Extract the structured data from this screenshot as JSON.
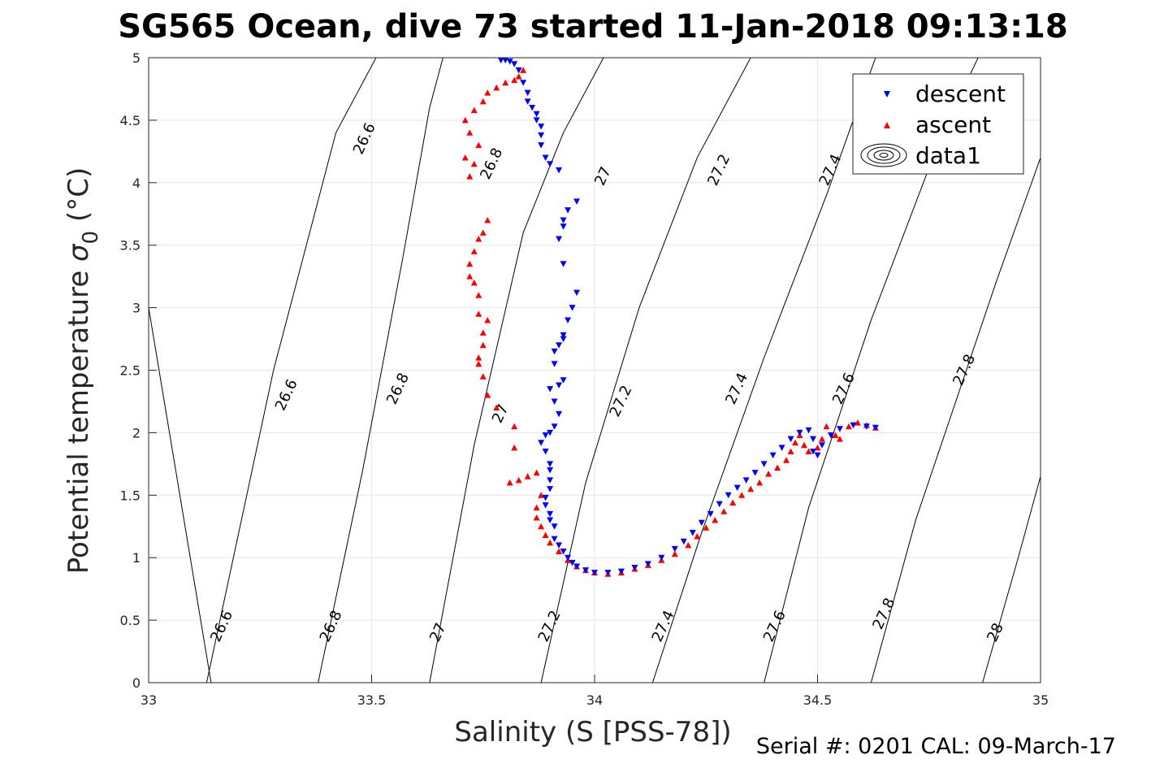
{
  "chart_data": {
    "type": "scatter",
    "title": "SG565 Ocean, dive 73 started 11-Jan-2018 09:13:18",
    "xlabel": "Salinity (S [PSS-78])",
    "ylabel_main": "Potential temperature ",
    "ylabel_symbol": "σ",
    "ylabel_subscript": "0",
    "ylabel_unit": " (°C)",
    "footer": "Serial #: 0201  CAL: 09-March-17",
    "xlim": [
      33,
      35
    ],
    "ylim": [
      0,
      5
    ],
    "xticks": [
      33,
      33.5,
      34,
      34.5,
      35
    ],
    "xtick_labels": [
      "33",
      "33.5",
      "34",
      "34.5",
      "35"
    ],
    "yticks": [
      0,
      0.5,
      1,
      1.5,
      2,
      2.5,
      3,
      3.5,
      4,
      4.5,
      5
    ],
    "ytick_labels": [
      "0",
      "0.5",
      "1",
      "1.5",
      "2",
      "2.5",
      "3",
      "3.5",
      "4",
      "4.5",
      "5"
    ],
    "grid": true,
    "legend_position": "top-right",
    "legend": [
      {
        "label": "descent",
        "marker": "down-triangle",
        "color": "#0000ff"
      },
      {
        "label": "ascent",
        "marker": "up-triangle",
        "color": "#ff0000"
      },
      {
        "label": "data1",
        "marker": "contour"
      }
    ],
    "contours": [
      {
        "points": [
          [
            33.0,
            3.0
          ],
          [
            33.14,
            0.0
          ]
        ],
        "labels": []
      },
      {
        "points": [
          [
            33.13,
            0.0
          ],
          [
            33.28,
            2.5
          ],
          [
            33.42,
            4.4
          ],
          [
            33.51,
            5.0
          ]
        ],
        "labels": [
          {
            "text": "26.6",
            "x": 33.165,
            "y": 0.45
          },
          {
            "text": "26.6",
            "x": 33.31,
            "y": 2.3
          },
          {
            "text": "26.6",
            "x": 33.485,
            "y": 4.35
          }
        ]
      },
      {
        "points": [
          [
            33.38,
            0.0
          ],
          [
            33.48,
            1.7
          ],
          [
            33.57,
            3.4
          ],
          [
            33.63,
            4.6
          ],
          [
            33.66,
            5.0
          ]
        ],
        "labels": [
          {
            "text": "26.8",
            "x": 33.41,
            "y": 0.45
          },
          {
            "text": "26.8",
            "x": 33.56,
            "y": 2.35
          },
          {
            "text": "26.8",
            "x": 33.77,
            "y": 4.15
          }
        ]
      },
      {
        "points": [
          [
            33.63,
            0.0
          ],
          [
            33.73,
            1.9
          ],
          [
            33.84,
            3.6
          ],
          [
            33.93,
            4.4
          ],
          [
            34.02,
            5.0
          ]
        ],
        "labels": [
          {
            "text": "27",
            "x": 33.65,
            "y": 0.4
          },
          {
            "text": "27",
            "x": 33.79,
            "y": 2.15
          },
          {
            "text": "27",
            "x": 34.02,
            "y": 4.05
          }
        ]
      },
      {
        "points": [
          [
            33.88,
            0.0
          ],
          [
            33.98,
            1.6
          ],
          [
            34.1,
            3.0
          ],
          [
            34.23,
            4.2
          ],
          [
            34.35,
            5.0
          ]
        ],
        "labels": [
          {
            "text": "27.2",
            "x": 33.9,
            "y": 0.45
          },
          {
            "text": "27.2",
            "x": 34.06,
            "y": 2.25
          },
          {
            "text": "27.2",
            "x": 34.28,
            "y": 4.1
          }
        ]
      },
      {
        "points": [
          [
            34.13,
            0.0
          ],
          [
            34.24,
            1.2
          ],
          [
            34.38,
            2.6
          ],
          [
            34.52,
            3.9
          ],
          [
            34.63,
            5.0
          ]
        ],
        "labels": [
          {
            "text": "27.4",
            "x": 34.155,
            "y": 0.45
          },
          {
            "text": "27.4",
            "x": 34.32,
            "y": 2.35
          },
          {
            "text": "27.4",
            "x": 34.53,
            "y": 4.1
          }
        ]
      },
      {
        "points": [
          [
            34.38,
            0.0
          ],
          [
            34.48,
            1.4
          ],
          [
            34.62,
            2.9
          ],
          [
            34.78,
            4.4
          ],
          [
            34.86,
            5.0
          ]
        ],
        "labels": [
          {
            "text": "27.6",
            "x": 34.405,
            "y": 0.45
          },
          {
            "text": "27.6",
            "x": 34.56,
            "y": 2.35
          }
        ]
      },
      {
        "points": [
          [
            34.62,
            0.0
          ],
          [
            34.72,
            1.3
          ],
          [
            34.9,
            3.2
          ],
          [
            35.0,
            4.2
          ]
        ],
        "labels": [
          {
            "text": "27.8",
            "x": 34.65,
            "y": 0.55
          },
          {
            "text": "27.8",
            "x": 34.83,
            "y": 2.5
          }
        ]
      },
      {
        "points": [
          [
            34.87,
            0.0
          ],
          [
            34.95,
            1.0
          ],
          [
            35.0,
            1.65
          ]
        ],
        "labels": [
          {
            "text": "28",
            "x": 34.9,
            "y": 0.4
          }
        ]
      }
    ],
    "series": [
      {
        "name": "descent",
        "marker": "down-triangle",
        "color": "#0000ff",
        "points": [
          [
            33.79,
            4.98
          ],
          [
            33.8,
            4.98
          ],
          [
            33.81,
            4.97
          ],
          [
            33.82,
            4.95
          ],
          [
            33.83,
            4.9
          ],
          [
            33.84,
            4.8
          ],
          [
            33.85,
            4.72
          ],
          [
            33.85,
            4.65
          ],
          [
            33.86,
            4.6
          ],
          [
            33.87,
            4.55
          ],
          [
            33.87,
            4.5
          ],
          [
            33.88,
            4.45
          ],
          [
            33.88,
            4.38
          ],
          [
            33.88,
            4.3
          ],
          [
            33.89,
            4.2
          ],
          [
            33.9,
            4.15
          ],
          [
            33.92,
            4.1
          ],
          [
            33.96,
            3.85
          ],
          [
            33.94,
            3.78
          ],
          [
            33.93,
            3.7
          ],
          [
            33.93,
            3.65
          ],
          [
            33.92,
            3.55
          ],
          [
            33.93,
            3.35
          ],
          [
            33.96,
            3.12
          ],
          [
            33.95,
            3.0
          ],
          [
            33.94,
            2.9
          ],
          [
            33.93,
            2.78
          ],
          [
            33.93,
            2.75
          ],
          [
            33.92,
            2.7
          ],
          [
            33.91,
            2.65
          ],
          [
            33.91,
            2.55
          ],
          [
            33.93,
            2.42
          ],
          [
            33.92,
            2.38
          ],
          [
            33.9,
            2.35
          ],
          [
            33.91,
            2.25
          ],
          [
            33.92,
            2.15
          ],
          [
            33.91,
            2.05
          ],
          [
            33.9,
            2.0
          ],
          [
            33.89,
            1.98
          ],
          [
            33.88,
            1.92
          ],
          [
            33.89,
            1.85
          ],
          [
            33.9,
            1.75
          ],
          [
            33.9,
            1.7
          ],
          [
            33.9,
            1.62
          ],
          [
            33.9,
            1.55
          ],
          [
            33.89,
            1.48
          ],
          [
            33.89,
            1.42
          ],
          [
            33.9,
            1.35
          ],
          [
            33.9,
            1.3
          ],
          [
            33.91,
            1.25
          ],
          [
            33.91,
            1.15
          ],
          [
            33.92,
            1.1
          ],
          [
            33.93,
            1.05
          ],
          [
            33.94,
            1.0
          ],
          [
            33.95,
            0.96
          ],
          [
            33.96,
            0.93
          ],
          [
            33.98,
            0.9
          ],
          [
            34.0,
            0.88
          ],
          [
            34.03,
            0.88
          ],
          [
            34.06,
            0.89
          ],
          [
            34.09,
            0.92
          ],
          [
            34.12,
            0.95
          ],
          [
            34.15,
            1.0
          ],
          [
            34.18,
            1.07
          ],
          [
            34.2,
            1.13
          ],
          [
            34.22,
            1.2
          ],
          [
            34.24,
            1.28
          ],
          [
            34.26,
            1.35
          ],
          [
            34.28,
            1.43
          ],
          [
            34.3,
            1.5
          ],
          [
            34.32,
            1.56
          ],
          [
            34.34,
            1.62
          ],
          [
            34.36,
            1.68
          ],
          [
            34.38,
            1.75
          ],
          [
            34.4,
            1.82
          ],
          [
            34.42,
            1.88
          ],
          [
            34.44,
            1.95
          ],
          [
            34.46,
            2.0
          ],
          [
            34.48,
            2.02
          ],
          [
            34.49,
            1.95
          ],
          [
            34.49,
            1.85
          ],
          [
            34.5,
            1.82
          ],
          [
            34.51,
            1.9
          ],
          [
            34.53,
            1.98
          ],
          [
            34.55,
            2.03
          ],
          [
            34.58,
            2.06
          ],
          [
            34.61,
            2.05
          ],
          [
            34.63,
            2.04
          ]
        ]
      },
      {
        "name": "ascent",
        "marker": "up-triangle",
        "color": "#ff0000",
        "points": [
          [
            33.84,
            4.9
          ],
          [
            33.83,
            4.85
          ],
          [
            33.82,
            4.82
          ],
          [
            33.8,
            4.8
          ],
          [
            33.78,
            4.76
          ],
          [
            33.76,
            4.72
          ],
          [
            33.75,
            4.65
          ],
          [
            33.73,
            4.58
          ],
          [
            33.71,
            4.5
          ],
          [
            33.72,
            4.4
          ],
          [
            33.74,
            4.3
          ],
          [
            33.71,
            4.2
          ],
          [
            33.73,
            4.15
          ],
          [
            33.72,
            4.05
          ],
          [
            33.76,
            3.7
          ],
          [
            33.75,
            3.6
          ],
          [
            33.74,
            3.55
          ],
          [
            33.73,
            3.45
          ],
          [
            33.72,
            3.35
          ],
          [
            33.72,
            3.25
          ],
          [
            33.73,
            3.2
          ],
          [
            33.74,
            3.1
          ],
          [
            33.74,
            2.95
          ],
          [
            33.75,
            2.8
          ],
          [
            33.76,
            2.9
          ],
          [
            33.75,
            2.7
          ],
          [
            33.74,
            2.6
          ],
          [
            33.74,
            2.55
          ],
          [
            33.75,
            2.45
          ],
          [
            33.76,
            2.3
          ],
          [
            33.78,
            2.2
          ],
          [
            33.82,
            2.05
          ],
          [
            33.82,
            1.88
          ],
          [
            33.81,
            1.6
          ],
          [
            33.83,
            1.62
          ],
          [
            33.85,
            1.65
          ],
          [
            33.87,
            1.68
          ],
          [
            33.88,
            1.5
          ],
          [
            33.87,
            1.4
          ],
          [
            33.87,
            1.32
          ],
          [
            33.88,
            1.25
          ],
          [
            33.89,
            1.18
          ],
          [
            33.9,
            1.12
          ],
          [
            33.92,
            1.05
          ],
          [
            33.94,
            0.98
          ],
          [
            33.96,
            0.93
          ],
          [
            33.98,
            0.9
          ],
          [
            34.0,
            0.88
          ],
          [
            34.03,
            0.87
          ],
          [
            34.06,
            0.88
          ],
          [
            34.09,
            0.91
          ],
          [
            34.12,
            0.94
          ],
          [
            34.15,
            0.98
          ],
          [
            34.18,
            1.03
          ],
          [
            34.21,
            1.1
          ],
          [
            34.23,
            1.17
          ],
          [
            34.25,
            1.24
          ],
          [
            34.27,
            1.3
          ],
          [
            34.29,
            1.37
          ],
          [
            34.31,
            1.44
          ],
          [
            34.33,
            1.5
          ],
          [
            34.35,
            1.55
          ],
          [
            34.37,
            1.6
          ],
          [
            34.39,
            1.67
          ],
          [
            34.41,
            1.72
          ],
          [
            34.43,
            1.78
          ],
          [
            34.44,
            1.85
          ],
          [
            34.45,
            1.92
          ],
          [
            34.46,
            1.98
          ],
          [
            34.47,
            1.9
          ],
          [
            34.48,
            1.85
          ],
          [
            34.5,
            1.88
          ],
          [
            34.51,
            1.95
          ],
          [
            34.52,
            2.05
          ],
          [
            34.54,
            1.98
          ],
          [
            34.55,
            1.95
          ],
          [
            34.57,
            2.05
          ],
          [
            34.59,
            2.08
          ],
          [
            34.61,
            2.06
          ],
          [
            34.63,
            2.04
          ]
        ]
      }
    ]
  }
}
